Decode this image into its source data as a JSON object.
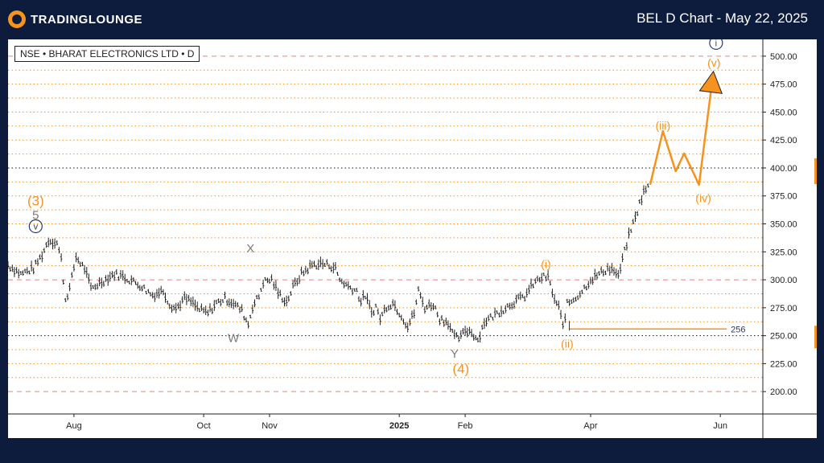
{
  "header": {
    "logo_text": "TRADINGLOUNGE",
    "title": "BEL D Chart - May 22, 2025"
  },
  "symbol_label": "NSE • BHARAT ELECTRONICS LTD • D",
  "colors": {
    "header_bg": "#0d1b3d",
    "orange": "#f7941d",
    "wave_orange": "#f7921e",
    "red_dash": "#e8837b",
    "price": "#222222",
    "gray_label": "#7a7a7a",
    "navy": "#2b3a6a"
  },
  "chart_data": {
    "type": "line",
    "title": "BEL D Chart - May 22, 2025",
    "instrument": "NSE • BHARAT ELECTRONICS LTD • D",
    "ylim": [
      180,
      515
    ],
    "y_ticks": [
      200,
      225,
      250,
      275,
      300,
      325,
      350,
      375,
      400,
      425,
      450,
      475,
      500
    ],
    "y_tick_labels": [
      "200.00",
      "225.00",
      "250.00",
      "275.00",
      "300.00",
      "325.00",
      "350.00",
      "375.00",
      "400.00",
      "425.00",
      "450.00",
      "475.00",
      "500.00"
    ],
    "x_ticks": [
      {
        "label": "Aug",
        "day": 21
      },
      {
        "label": "Oct",
        "day": 82
      },
      {
        "label": "Nov",
        "day": 113
      },
      {
        "label": "2025",
        "day": 174
      },
      {
        "label": "Feb",
        "day": 205
      },
      {
        "label": "Apr",
        "day": 264
      },
      {
        "label": "Jun",
        "day": 325
      }
    ],
    "xlim": [
      -10,
      345
    ],
    "price_points": [
      [
        -10,
        313
      ],
      [
        -4,
        305
      ],
      [
        2,
        310
      ],
      [
        6,
        322
      ],
      [
        9,
        335
      ],
      [
        13,
        333
      ],
      [
        15,
        318
      ],
      [
        17,
        282
      ],
      [
        19,
        292
      ],
      [
        22,
        320
      ],
      [
        26,
        310
      ],
      [
        29,
        292
      ],
      [
        34,
        298
      ],
      [
        40,
        305
      ],
      [
        45,
        302
      ],
      [
        52,
        295
      ],
      [
        58,
        286
      ],
      [
        63,
        290
      ],
      [
        66,
        278
      ],
      [
        69,
        274
      ],
      [
        73,
        283
      ],
      [
        76,
        280
      ],
      [
        80,
        273
      ],
      [
        84,
        270
      ],
      [
        88,
        279
      ],
      [
        92,
        283
      ],
      [
        96,
        279
      ],
      [
        100,
        272
      ],
      [
        103,
        260
      ],
      [
        105,
        276
      ],
      [
        108,
        285
      ],
      [
        110,
        298
      ],
      [
        114,
        300
      ],
      [
        117,
        288
      ],
      [
        121,
        280
      ],
      [
        124,
        293
      ],
      [
        128,
        305
      ],
      [
        133,
        313
      ],
      [
        137,
        314
      ],
      [
        141,
        313
      ],
      [
        144,
        310
      ],
      [
        146,
        300
      ],
      [
        150,
        294
      ],
      [
        154,
        290
      ],
      [
        156,
        280
      ],
      [
        158,
        286
      ],
      [
        161,
        270
      ],
      [
        163,
        276
      ],
      [
        165,
        265
      ],
      [
        168,
        276
      ],
      [
        171,
        279
      ],
      [
        175,
        268
      ],
      [
        178,
        258
      ],
      [
        181,
        270
      ],
      [
        183,
        290
      ],
      [
        186,
        275
      ],
      [
        190,
        278
      ],
      [
        193,
        265
      ],
      [
        197,
        262
      ],
      [
        200,
        248
      ],
      [
        203,
        248
      ],
      [
        205,
        255
      ],
      [
        208,
        253
      ],
      [
        211,
        246
      ],
      [
        214,
        262
      ],
      [
        217,
        266
      ],
      [
        220,
        270
      ],
      [
        224,
        275
      ],
      [
        228,
        280
      ],
      [
        233,
        285
      ],
      [
        237,
        296
      ],
      [
        241,
        302
      ],
      [
        244,
        302
      ],
      [
        247,
        282
      ],
      [
        249,
        275
      ],
      [
        251,
        258
      ],
      [
        253,
        278
      ],
      [
        257,
        284
      ],
      [
        260,
        290
      ],
      [
        264,
        300
      ],
      [
        269,
        306
      ],
      [
        272,
        310
      ],
      [
        275,
        308
      ],
      [
        277,
        302
      ],
      [
        279,
        318
      ],
      [
        281,
        332
      ],
      [
        283,
        345
      ],
      [
        285,
        355
      ],
      [
        287,
        368
      ],
      [
        289,
        378
      ],
      [
        291,
        383
      ]
    ],
    "projection": [
      [
        292,
        385
      ],
      [
        298,
        433
      ],
      [
        304,
        397
      ],
      [
        308,
        413
      ],
      [
        312,
        397
      ],
      [
        315,
        385
      ],
      [
        321,
        475
      ]
    ],
    "projection_color": "orange",
    "support_line": {
      "value": 256,
      "label": "256",
      "from_day": 254,
      "to_day": 328
    },
    "red_dashed_levels": [
      200,
      300,
      500
    ],
    "black_dotted_levels": [
      250,
      400
    ],
    "orange_dotted_levels": [
      212.5,
      225,
      237.5,
      262.5,
      275,
      287.5,
      312.5,
      325,
      337.5,
      350,
      362.5,
      375,
      387.5,
      412.5,
      425,
      437.5,
      450,
      462.5,
      475,
      487.5
    ],
    "wave_labels": [
      {
        "text": "(3)",
        "day": 3,
        "price": 370,
        "color": "orange"
      },
      {
        "text": "5",
        "day": 3,
        "price": 358,
        "color": "gray"
      },
      {
        "text": "v",
        "day": 3,
        "price": 345,
        "color": "navy",
        "circled": true
      },
      {
        "text": "X",
        "day": 104,
        "price": 328,
        "color": "gray"
      },
      {
        "text": "W",
        "day": 96,
        "price": 248,
        "color": "gray"
      },
      {
        "text": "(i)",
        "day": 243,
        "price": 314,
        "color": "orange"
      },
      {
        "text": "(ii)",
        "day": 253,
        "price": 243,
        "color": "orange"
      },
      {
        "text": "Y",
        "day": 200,
        "price": 234,
        "color": "gray"
      },
      {
        "text": "(4)",
        "day": 203,
        "price": 220,
        "color": "orange"
      },
      {
        "text": "(iii)",
        "day": 298,
        "price": 438,
        "color": "orange"
      },
      {
        "text": "(iv)",
        "day": 317,
        "price": 373,
        "color": "orange"
      },
      {
        "text": "(v)",
        "day": 322,
        "price": 494,
        "color": "orange"
      },
      {
        "text": "i",
        "day": 323,
        "price": 509,
        "color": "navy",
        "circled": true
      }
    ]
  }
}
